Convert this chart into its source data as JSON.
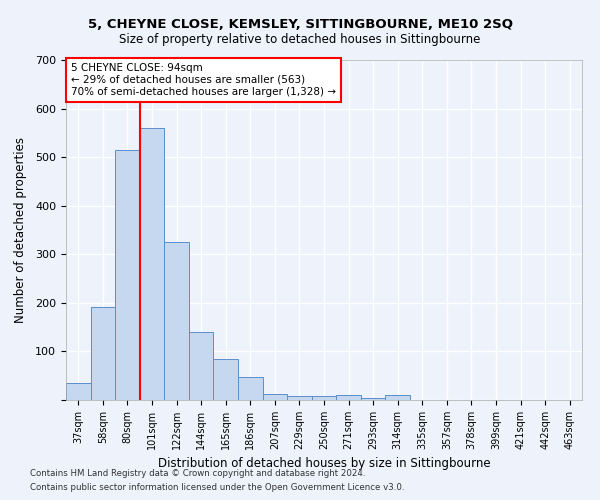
{
  "title1": "5, CHEYNE CLOSE, KEMSLEY, SITTINGBOURNE, ME10 2SQ",
  "title2": "Size of property relative to detached houses in Sittingbourne",
  "xlabel": "Distribution of detached houses by size in Sittingbourne",
  "ylabel": "Number of detached properties",
  "categories": [
    "37sqm",
    "58sqm",
    "80sqm",
    "101sqm",
    "122sqm",
    "144sqm",
    "165sqm",
    "186sqm",
    "207sqm",
    "229sqm",
    "250sqm",
    "271sqm",
    "293sqm",
    "314sqm",
    "335sqm",
    "357sqm",
    "378sqm",
    "399sqm",
    "421sqm",
    "442sqm",
    "463sqm"
  ],
  "values": [
    35,
    192,
    515,
    560,
    325,
    140,
    85,
    47,
    13,
    8,
    8,
    10,
    5,
    10,
    0,
    0,
    0,
    0,
    0,
    0,
    0
  ],
  "bar_color": "#c5d8f0",
  "bar_edge_color": "#5b8fc9",
  "property_line_x": 2.5,
  "annotation_text": "5 CHEYNE CLOSE: 94sqm\n← 29% of detached houses are smaller (563)\n70% of semi-detached houses are larger (1,328) →",
  "annotation_box_color": "white",
  "annotation_box_edge_color": "red",
  "line_color": "red",
  "ylim": [
    0,
    700
  ],
  "yticks": [
    0,
    100,
    200,
    300,
    400,
    500,
    600,
    700
  ],
  "footer1": "Contains HM Land Registry data © Crown copyright and database right 2024.",
  "footer2": "Contains public sector information licensed under the Open Government Licence v3.0.",
  "bg_color": "#edf2fb",
  "grid_color": "white"
}
